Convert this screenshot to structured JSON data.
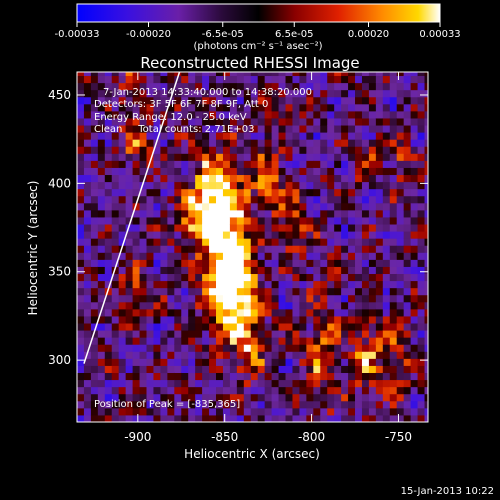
{
  "colorbar": {
    "min": -0.00033,
    "max": 0.00033,
    "tick_labels": [
      "-0.00033",
      "-0.00020",
      "-6.5e-05",
      "6.5e-05",
      "0.00020",
      "0.00033"
    ],
    "tick_values": [
      -0.00033,
      -0.0002,
      -6.5e-05,
      6.5e-05,
      0.0002,
      0.00033
    ],
    "units_label": "(photons cm⁻² s⁻¹ asec⁻²)",
    "colors": [
      "#0000ff",
      "#5a00c8",
      "#7a2a8a",
      "#000000",
      "#a00000",
      "#e03000",
      "#ff8a00",
      "#ffd000",
      "#ffffff"
    ]
  },
  "chart_data": {
    "type": "heatmap",
    "title": "Reconstructed RHESSI Image",
    "xlabel": "Heliocentric X (arcsec)",
    "ylabel": "Heliocentric Y (arcsec)",
    "xlim": [
      -935,
      -733
    ],
    "ylim": [
      265,
      463
    ],
    "x_ticks": [
      -900,
      -850,
      -800,
      -750
    ],
    "y_ticks": [
      300,
      350,
      400,
      450
    ],
    "x_tick_labels": [
      "-900",
      "-850",
      "-800",
      "-750"
    ],
    "y_tick_labels": [
      "300",
      "350",
      "400",
      "450"
    ],
    "grid": false,
    "annotations": [
      "7-Jan-2013 14:33:40.000 to 14:38:20.000",
      "Detectors: 3F 5F 6F 7F 8F 9F, Att 0",
      "Energy Range: 12.0 - 25.0 keV",
      "Clean     Total counts: 2.71E+03"
    ],
    "peak_label": "Position of Peak = [-835,365]",
    "peak": [
      -835,
      365
    ],
    "limb_line": [
      [
        -931,
        298
      ],
      [
        -876,
        463
      ]
    ],
    "pixel_size_arcsec": 4,
    "image_description": "Clean-reconstructed X-ray map; bright orange/yellow sources concentrated near x≈-850..-860, y≈330..400, with patchy purple/blue negative residuals elsewhere."
  },
  "footer_date": "15-Jan-2013 10:22"
}
